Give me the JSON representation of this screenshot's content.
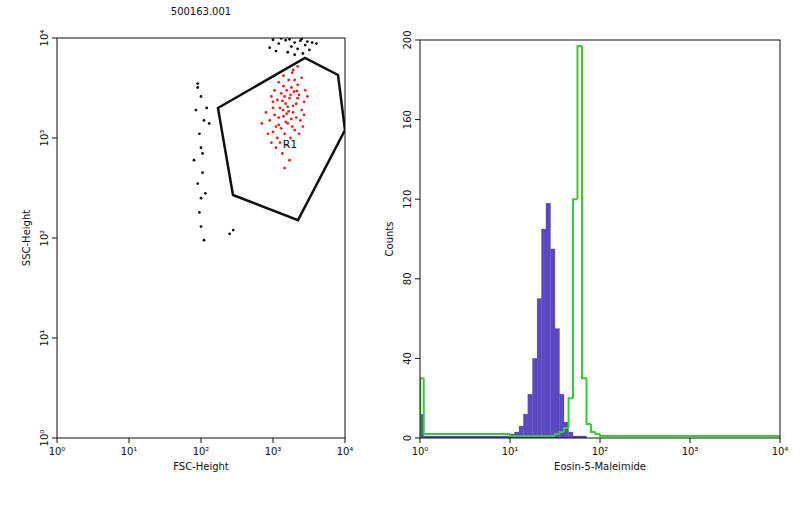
{
  "chart_data": [
    {
      "type": "scatter",
      "title": "500163.001",
      "x_label": "FSC-Height",
      "y_label": "SSC-Height",
      "log": true,
      "xlim": [
        1,
        10000
      ],
      "ylim": [
        1,
        10000
      ],
      "xticks": [
        {
          "value": 1,
          "label": "10⁰"
        },
        {
          "value": 10,
          "label": "10¹"
        },
        {
          "value": 100,
          "label": "10²"
        },
        {
          "value": 1000,
          "label": "10³"
        },
        {
          "value": 10000,
          "label": "10⁴"
        }
      ],
      "yticks": [
        {
          "value": 1,
          "label": "10⁰"
        },
        {
          "value": 10,
          "label": "10¹"
        },
        {
          "value": 100,
          "label": "10²"
        },
        {
          "value": 1000,
          "label": "10³"
        },
        {
          "value": 10000,
          "label": "10⁴"
        }
      ],
      "series": [
        {
          "color": "#111111",
          "marker": "dot",
          "x": [
            1500,
            2000,
            1200,
            2500,
            1800,
            3000,
            1000,
            2200,
            1600,
            2800,
            1300,
            3500,
            2000,
            900,
            2600,
            1700,
            3200,
            1100,
            2400,
            4000,
            90,
            100,
            85,
            110,
            95,
            100,
            80,
            105,
            90,
            100,
            95,
            100,
            110,
            120,
            130,
            250,
            280,
            90,
            105,
            115
          ],
          "values": [
            9500,
            9000,
            8800,
            9800,
            8200,
            9200,
            9600,
            7800,
            7200,
            8500,
            9900,
            9000,
            6800,
            8000,
            7000,
            9700,
            7600,
            7400,
            9400,
            8800,
            3200,
            2600,
            1900,
            1500,
            1100,
            800,
            600,
            450,
            350,
            250,
            180,
            130,
            95,
            2000,
            1400,
            110,
            120,
            3500,
            700,
            280
          ]
        },
        {
          "color": "#e8221c",
          "marker": "dot",
          "x": [
            1380,
            1500,
            1200,
            1700,
            1100,
            1900,
            1300,
            1600,
            2100,
            1000,
            1450,
            1800,
            1250,
            2300,
            900,
            1550,
            2000,
            1150,
            1650,
            2500,
            850,
            1350,
            1750,
            2200,
            1050,
            2700,
            1400,
            950,
            1950,
            1300,
            1900,
            2400,
            1100,
            1850,
            1450,
            2800,
            800,
            1700,
            1200,
            2100,
            1500,
            1000,
            2600,
            1400,
            1900,
            1250,
            3000,
            700,
            1550,
            2200,
            1650,
            1350,
            1800,
            1050,
            2000,
            1150,
            2500,
            1450,
            950,
            1750,
            2200,
            2300,
            1600,
            1200,
            2150,
            1850,
            1400,
            1000,
            2700,
            1550
          ],
          "values": [
            1900,
            2200,
            1600,
            2500,
            1300,
            1800,
            2800,
            1400,
            2200,
            2000,
            1100,
            3200,
            900,
            2700,
            1500,
            1750,
            1200,
            2400,
            3800,
            1900,
            1100,
            700,
            1000,
            3400,
            3000,
            2300,
            4200,
            2600,
            2900,
            1250,
            4800,
            1500,
            800,
            4500,
            2600,
            3000,
            1800,
            600,
            3600,
            1600,
            1450,
            1150,
            1300,
            3300,
            2100,
            2000,
            2600,
            1400,
            850,
            2500,
            1850,
            2350,
            1550,
            1700,
            3800,
            1000,
            4000,
            500,
            900,
            2700,
            5200,
            1100,
            2050,
            1350,
            2950,
            1300,
            1650,
            2300,
            1700,
            3000
          ]
        }
      ],
      "gate": {
        "x": [
          172,
          2780,
          8000,
          10000,
          2225,
          278
        ],
        "y": [
          1995,
          6310,
          4266,
          1202,
          151,
          269
        ]
      },
      "annotations": [
        {
          "text": "R1",
          "x": 1722,
          "y": 794
        }
      ]
    },
    {
      "type": "histogram",
      "x_label": "Eosin-5-Maleimide",
      "y_label": "Counts",
      "log": "x",
      "xlim": [
        1,
        10000
      ],
      "ylim": [
        0,
        200
      ],
      "xticks": [
        {
          "value": 1,
          "label": "10⁰"
        },
        {
          "value": 10,
          "label": "10¹"
        },
        {
          "value": 100,
          "label": "10²"
        },
        {
          "value": 1000,
          "label": "10³"
        },
        {
          "value": 10000,
          "label": "10⁴"
        }
      ],
      "yticks": [
        0,
        40,
        80,
        120,
        160,
        200
      ],
      "bins": [
        1,
        1.1,
        10,
        11.2,
        12.6,
        14.1,
        15.8,
        17.8,
        20,
        22.4,
        25.1,
        28.2,
        31.6,
        35.5,
        39.8,
        44.7,
        50.1,
        56.2,
        63.1,
        70.8,
        79.4,
        89.1,
        100,
        10000
      ],
      "series": [
        {
          "type": "bar",
          "color": "#5a48c0",
          "values": [
            12,
            1,
            2,
            3,
            6,
            12,
            22,
            40,
            70,
            105,
            118,
            95,
            55,
            22,
            8,
            3,
            1,
            1,
            1,
            0,
            0,
            0,
            0
          ]
        },
        {
          "type": "line",
          "color": "#33cc33",
          "values": [
            30,
            2,
            1,
            1,
            1,
            1,
            1,
            1,
            1,
            1,
            1,
            1,
            2,
            3,
            5,
            20,
            120,
            197,
            30,
            7,
            3,
            2,
            1
          ]
        }
      ]
    }
  ]
}
